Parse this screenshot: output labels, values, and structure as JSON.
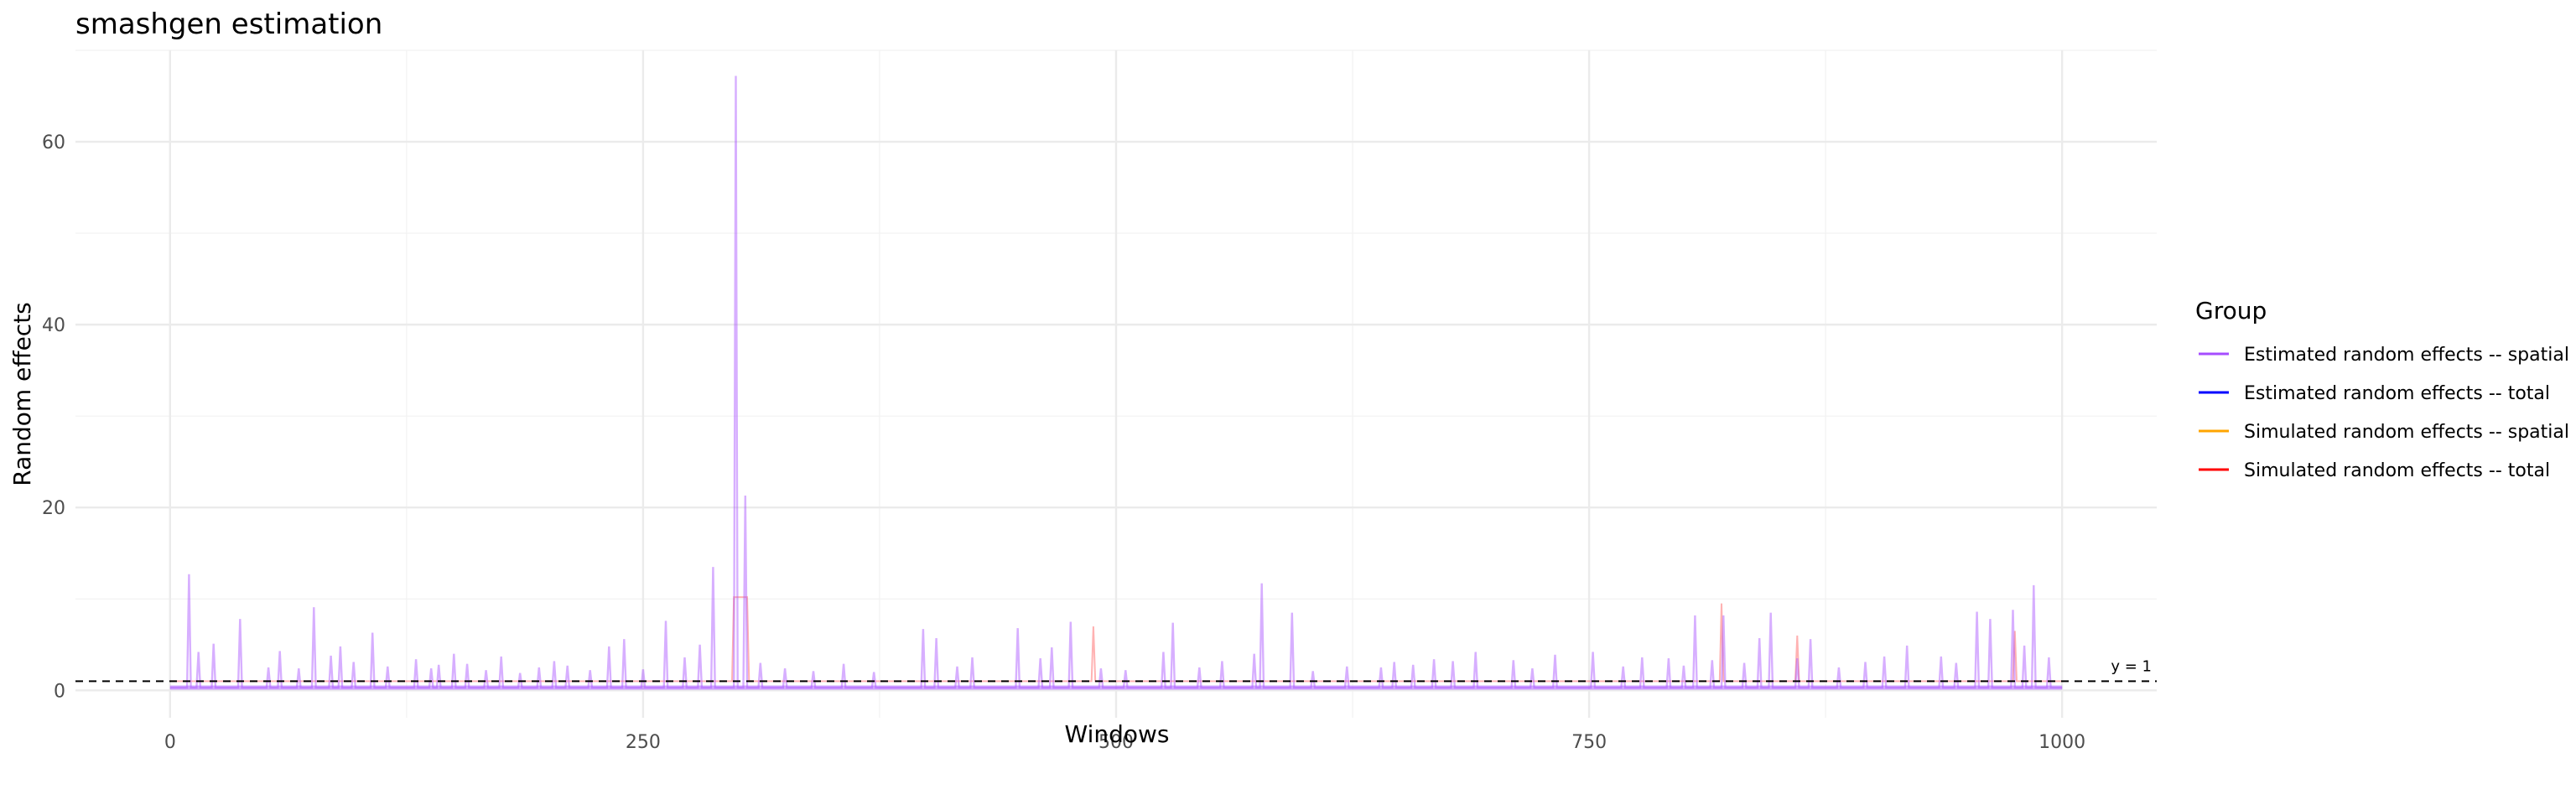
{
  "chart_data": {
    "type": "line",
    "title": "smashgen estimation",
    "xlabel": "Windows",
    "ylabel": "Random effects",
    "xlim": [
      -50,
      1050
    ],
    "ylim": [
      -3,
      70
    ],
    "x_ticks": [
      0,
      250,
      500,
      750,
      1000
    ],
    "x_tick_labels": [
      "0",
      "250",
      "500",
      "750",
      "1000"
    ],
    "y_ticks": [
      0,
      20,
      40,
      60
    ],
    "y_tick_labels": [
      "0",
      "20",
      "40",
      "60"
    ],
    "grid": true,
    "legend": {
      "title": "Group",
      "position": "right",
      "entries": [
        {
          "label": "Estimated random effects -- spatial",
          "color": "#a64dff"
        },
        {
          "label": "Estimated random effects -- total",
          "color": "#0000ff"
        },
        {
          "label": "Simulated random effects -- spatial",
          "color": "#ffa500"
        },
        {
          "label": "Simulated random effects -- total",
          "color": "#ff0000"
        }
      ]
    },
    "reference_line": {
      "y": 1,
      "label": "y = 1",
      "style": "dashed"
    },
    "series": [
      {
        "name": "Estimated random effects -- spatial",
        "color": "#a64dff",
        "baseline": 0.3,
        "peaks": [
          [
            10,
            12.7
          ],
          [
            15,
            4.2
          ],
          [
            23,
            5.1
          ],
          [
            37,
            7.8
          ],
          [
            52,
            2.5
          ],
          [
            58,
            4.3
          ],
          [
            68,
            2.4
          ],
          [
            76,
            9.1
          ],
          [
            85,
            3.8
          ],
          [
            90,
            4.8
          ],
          [
            97,
            3.1
          ],
          [
            107,
            6.3
          ],
          [
            115,
            2.6
          ],
          [
            130,
            3.4
          ],
          [
            138,
            2.4
          ],
          [
            142,
            2.8
          ],
          [
            150,
            4.0
          ],
          [
            157,
            2.9
          ],
          [
            167,
            2.2
          ],
          [
            175,
            3.7
          ],
          [
            185,
            1.9
          ],
          [
            195,
            2.5
          ],
          [
            203,
            3.2
          ],
          [
            210,
            2.7
          ],
          [
            222,
            2.2
          ],
          [
            232,
            4.8
          ],
          [
            240,
            5.6
          ],
          [
            250,
            2.3
          ],
          [
            262,
            7.6
          ],
          [
            272,
            3.6
          ],
          [
            280,
            5.0
          ],
          [
            287,
            13.5
          ],
          [
            299,
            67.2
          ],
          [
            304,
            21.3
          ],
          [
            312,
            3.0
          ],
          [
            325,
            2.4
          ],
          [
            340,
            2.1
          ],
          [
            356,
            2.9
          ],
          [
            372,
            2.0
          ],
          [
            398,
            6.7
          ],
          [
            405,
            5.7
          ],
          [
            416,
            2.6
          ],
          [
            424,
            3.6
          ],
          [
            448,
            6.8
          ],
          [
            460,
            3.5
          ],
          [
            466,
            4.7
          ],
          [
            476,
            7.5
          ],
          [
            492,
            2.4
          ],
          [
            505,
            2.2
          ],
          [
            525,
            4.2
          ],
          [
            530,
            7.4
          ],
          [
            544,
            2.5
          ],
          [
            556,
            3.2
          ],
          [
            573,
            4.0
          ],
          [
            577,
            11.7
          ],
          [
            593,
            8.5
          ],
          [
            604,
            2.1
          ],
          [
            622,
            2.6
          ],
          [
            640,
            2.5
          ],
          [
            647,
            3.1
          ],
          [
            657,
            2.8
          ],
          [
            668,
            3.4
          ],
          [
            678,
            3.2
          ],
          [
            690,
            4.2
          ],
          [
            710,
            3.3
          ],
          [
            720,
            2.4
          ],
          [
            732,
            3.9
          ],
          [
            752,
            4.2
          ],
          [
            768,
            2.6
          ],
          [
            778,
            3.6
          ],
          [
            792,
            3.5
          ],
          [
            800,
            2.7
          ],
          [
            806,
            8.2
          ],
          [
            815,
            3.3
          ],
          [
            821,
            8.2
          ],
          [
            832,
            3.0
          ],
          [
            840,
            5.7
          ],
          [
            846,
            8.5
          ],
          [
            860,
            3.5
          ],
          [
            867,
            5.6
          ],
          [
            882,
            2.5
          ],
          [
            896,
            3.1
          ],
          [
            906,
            3.7
          ],
          [
            918,
            4.9
          ],
          [
            936,
            3.7
          ],
          [
            944,
            3.0
          ],
          [
            955,
            8.6
          ],
          [
            962,
            7.8
          ],
          [
            974,
            8.8
          ],
          [
            980,
            4.9
          ],
          [
            985,
            11.5
          ],
          [
            993,
            3.6
          ]
        ]
      },
      {
        "name": "Simulated random effects -- total",
        "color": "#ff0000",
        "baseline": 1.0,
        "plateau": {
          "x": [
            298,
            305
          ],
          "y": 10.2
        },
        "peaks": [
          [
            305,
            23.0
          ],
          [
            488,
            7.0
          ],
          [
            820,
            9.5
          ],
          [
            860,
            6.0
          ],
          [
            975,
            6.5
          ]
        ]
      }
    ]
  }
}
